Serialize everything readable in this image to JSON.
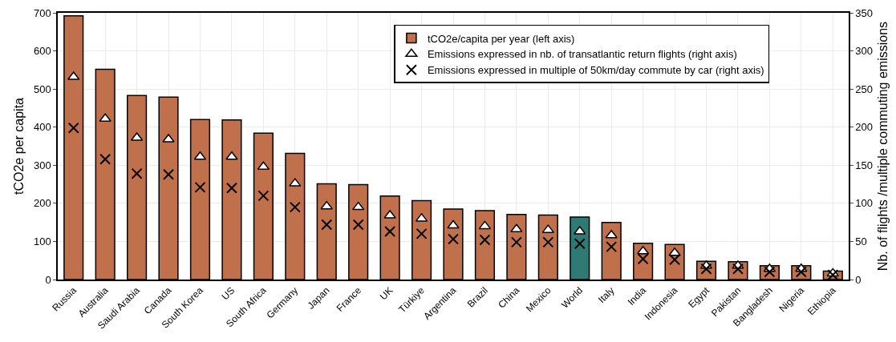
{
  "chart_data": {
    "type": "bar",
    "ylabel": "tCO2e per capita",
    "y2label": "Nb. of flights /multiple commuting emissions",
    "categories": [
      "Russia",
      "Australia",
      "Saudi Arabia",
      "Canada",
      "South Korea",
      "US",
      "South Africa",
      "Germany",
      "Japan",
      "France",
      "UK",
      "Türkiye",
      "Argentina",
      "Brazil",
      "China",
      "Mexico",
      "World",
      "Italy",
      "India",
      "Indonesia",
      "Egypt",
      "Pakistan",
      "Bangladesh",
      "Nigeria",
      "Ethiopia"
    ],
    "series": [
      {
        "name": "tCO2e/capita per year (left axis)",
        "colors": [
          "#c0704b",
          "#c0704b",
          "#c0704b",
          "#c0704b",
          "#c0704b",
          "#c0704b",
          "#c0704b",
          "#c0704b",
          "#c0704b",
          "#c0704b",
          "#c0704b",
          "#c0704b",
          "#c0704b",
          "#c0704b",
          "#c0704b",
          "#c0704b",
          "#2f7a73",
          "#c0704b",
          "#c0704b",
          "#c0704b",
          "#c0704b",
          "#c0704b",
          "#c0704b",
          "#c0704b",
          "#c0704b"
        ],
        "values": [
          692,
          552,
          483,
          479,
          420,
          419,
          384,
          331,
          251,
          249,
          219,
          207,
          185,
          181,
          171,
          169,
          164,
          150,
          95,
          92,
          48,
          47,
          36,
          36,
          22
        ]
      },
      {
        "type": "scatter",
        "axis": "y2",
        "marker": "triangle",
        "name": "Emissions expressed in nb. of transatlantic return flights (right axis)",
        "color": "#ffffff",
        "values": [
          266,
          211,
          186,
          184,
          161,
          161,
          148,
          126,
          96,
          95,
          84,
          80,
          71,
          70,
          66,
          65,
          63,
          58,
          37,
          35,
          18,
          18,
          14,
          14,
          8
        ]
      },
      {
        "type": "scatter",
        "axis": "y2",
        "marker": "cross",
        "name": "Emissions expressed in multiple of 50km/day commute by car (right axis)",
        "color": "#000000",
        "values": [
          199,
          158,
          139,
          138,
          121,
          120,
          110,
          95,
          72,
          72,
          63,
          60,
          53,
          52,
          49,
          49,
          47,
          43,
          27,
          26,
          14,
          14,
          10,
          10,
          6
        ]
      }
    ],
    "ylim": [
      0,
      700
    ],
    "yticks": [
      0,
      100,
      200,
      300,
      400,
      500,
      600,
      700
    ],
    "y2lim": [
      0,
      350
    ],
    "y2ticks": [
      0,
      50,
      100,
      150,
      200,
      250,
      300,
      350
    ],
    "grid": true,
    "legend": "top right"
  }
}
